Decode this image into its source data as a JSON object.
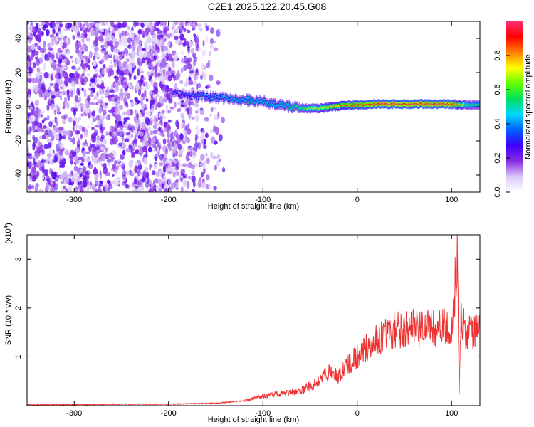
{
  "title": "C2E1.2025.122.20.45.G08",
  "chart_data": [
    {
      "type": "heatmap",
      "xlabel": "Height of straight line (km)",
      "ylabel": "Frequency (Hz)",
      "xlim": [
        -350,
        130
      ],
      "ylim": [
        -50,
        50
      ],
      "x_ticks": [
        "-300",
        "-200",
        "-100",
        "0",
        "100"
      ],
      "y_ticks": [
        "-40",
        "-20",
        "0",
        "20",
        "40"
      ],
      "colorbar": {
        "label": "Normalized spectral amplitude",
        "range": [
          0,
          1
        ],
        "ticks": [
          "0.0",
          "0.2",
          "0.4",
          "0.6",
          "0.8"
        ],
        "colors": [
          "#ffffff",
          "#d8c8f8",
          "#8a2be2",
          "#3c00ff",
          "#0060ff",
          "#00d8ff",
          "#00e060",
          "#60ff00",
          "#ffff00",
          "#ff8000",
          "#ff0000",
          "#ff3070"
        ]
      },
      "ridge": [
        {
          "x": -195,
          "y": 8,
          "amp": 0.3
        },
        {
          "x": -180,
          "y": 7,
          "amp": 0.35
        },
        {
          "x": -160,
          "y": 6,
          "amp": 0.4
        },
        {
          "x": -140,
          "y": 5,
          "amp": 0.45
        },
        {
          "x": -120,
          "y": 4,
          "amp": 0.5
        },
        {
          "x": -100,
          "y": 3,
          "amp": 0.5
        },
        {
          "x": -85,
          "y": 1,
          "amp": 0.5
        },
        {
          "x": -70,
          "y": 0,
          "amp": 0.55
        },
        {
          "x": -55,
          "y": -1,
          "amp": 0.6
        },
        {
          "x": -40,
          "y": -1,
          "amp": 0.7
        },
        {
          "x": -25,
          "y": 0,
          "amp": 0.8
        },
        {
          "x": -10,
          "y": 1,
          "amp": 0.85
        },
        {
          "x": 0,
          "y": 1,
          "amp": 0.9
        },
        {
          "x": 20,
          "y": 1.5,
          "amp": 0.95
        },
        {
          "x": 50,
          "y": 1.5,
          "amp": 0.95
        },
        {
          "x": 80,
          "y": 1.5,
          "amp": 0.95
        },
        {
          "x": 100,
          "y": 1.5,
          "amp": 0.95
        },
        {
          "x": 115,
          "y": 1,
          "amp": 0.6
        },
        {
          "x": 130,
          "y": 1,
          "amp": 0.55
        }
      ]
    },
    {
      "type": "line",
      "xlabel": "Height of straight line (km)",
      "ylabel": "SNR (10 * v/v)",
      "y_scale_note": "(x10",
      "y_scale_exp": "4",
      "xlim": [
        -350,
        130
      ],
      "ylim": [
        0,
        3.5
      ],
      "x_ticks": [
        "-300",
        "-200",
        "-100",
        "0",
        "100"
      ],
      "y_ticks": [
        "1",
        "2",
        "3"
      ],
      "color": "#ee3333",
      "series": [
        {
          "x": [
            -350,
            -300,
            -250,
            -200,
            -150,
            -120,
            -100,
            -80,
            -60,
            -40,
            -30,
            -20,
            -15,
            -10,
            0,
            10,
            20,
            30,
            40,
            60,
            80,
            95,
            100,
            103,
            106,
            108,
            110,
            115,
            130
          ],
          "values": [
            0.02,
            0.02,
            0.03,
            0.03,
            0.05,
            0.1,
            0.2,
            0.25,
            0.3,
            0.5,
            0.7,
            0.6,
            0.75,
            0.85,
            1.0,
            1.2,
            1.35,
            1.45,
            1.55,
            1.58,
            1.58,
            1.6,
            1.4,
            2.2,
            3.3,
            0.3,
            1.8,
            1.5,
            1.55
          ]
        }
      ]
    }
  ]
}
